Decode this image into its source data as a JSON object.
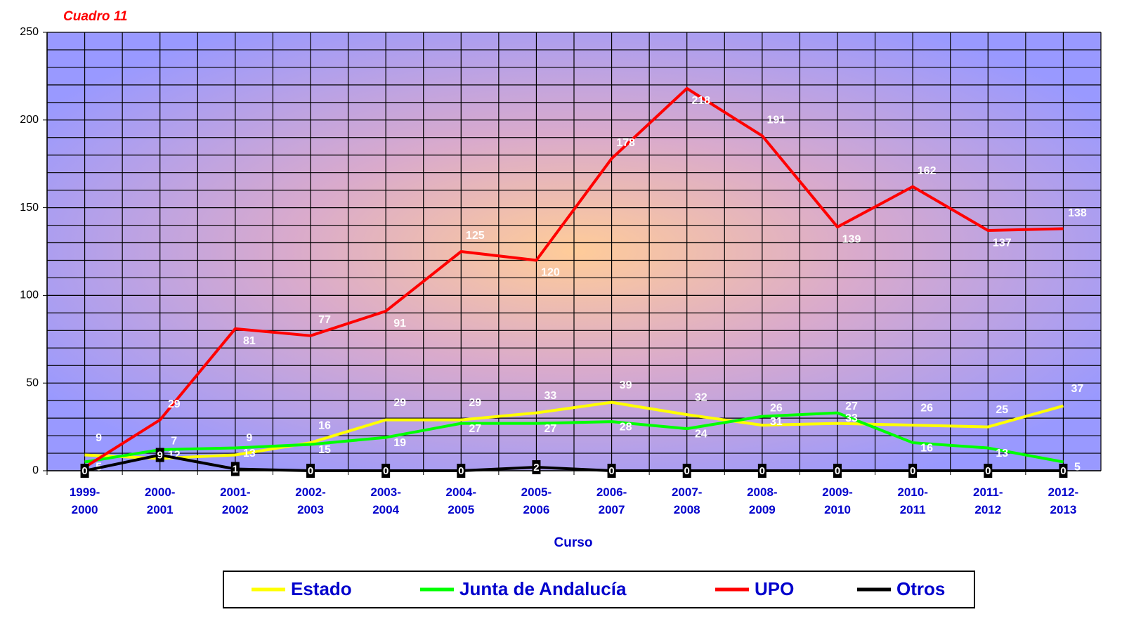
{
  "chart_data": {
    "type": "line",
    "title": "Cuadro 11",
    "x_label": "Curso",
    "categories": [
      "1999-2000",
      "2000-2001",
      "2001-2002",
      "2002-2003",
      "2003-2004",
      "2004-2005",
      "2005-2006",
      "2006-2007",
      "2007-2008",
      "2008-2009",
      "2009-2010",
      "2010-2011",
      "2011-2012",
      "2012-2013"
    ],
    "series": [
      {
        "name": "Estado",
        "color": "#ffff00",
        "values": [
          9,
          7,
          9,
          16,
          29,
          29,
          33,
          39,
          32,
          26,
          27,
          26,
          25,
          37
        ]
      },
      {
        "name": "Junta de Andalucía",
        "color": "#00ff00",
        "values": [
          5,
          12,
          13,
          15,
          19,
          27,
          27,
          28,
          24,
          31,
          33,
          16,
          13,
          5
        ]
      },
      {
        "name": "UPO",
        "color": "#ff0000",
        "values": [
          2,
          29,
          81,
          77,
          91,
          125,
          120,
          178,
          218,
          191,
          139,
          162,
          137,
          138
        ]
      },
      {
        "name": "Otros",
        "color": "#000000",
        "values": [
          0,
          9,
          1,
          0,
          0,
          0,
          2,
          0,
          0,
          0,
          0,
          0,
          0,
          0
        ]
      }
    ],
    "ylim": [
      0,
      250
    ],
    "yticks": [
      0,
      50,
      100,
      150,
      200,
      250
    ],
    "grid": true,
    "legend": "bottom"
  }
}
